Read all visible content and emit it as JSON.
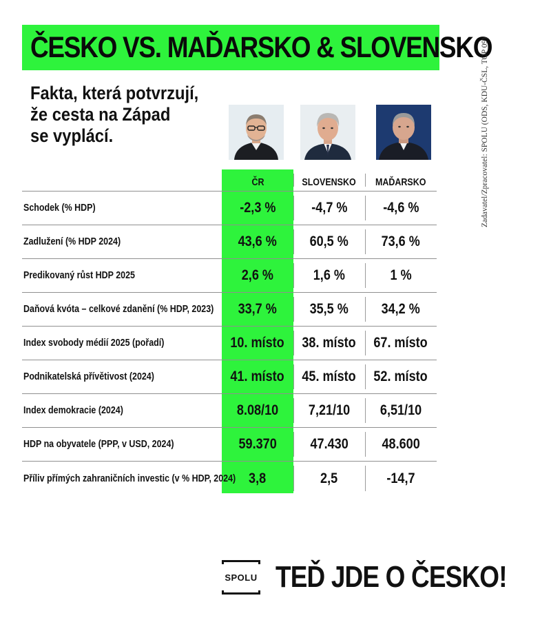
{
  "title": "ČESKO VS. MAĎARSKO & SLOVENSKO",
  "subtitle": [
    "Fakta, která potvrzují,",
    "že cesta na Západ",
    "se vyplácí."
  ],
  "side_credit": "Zadavatel/Zpracovatel: SPOLU (ODS, KDU-ČSL, TOP 09)",
  "avatars": [
    {
      "icon": "politician-portrait-cr-icon",
      "bg": "#e6edf1"
    },
    {
      "icon": "politician-portrait-slovensko-icon",
      "bg": "#e9eef1"
    },
    {
      "icon": "politician-portrait-madarsko-icon",
      "bg": "#1d3a70"
    }
  ],
  "table": {
    "columns": [
      "ČR",
      "SLOVENSKO",
      "MAĎARSKO"
    ],
    "rows": [
      {
        "label": "Schodek (% HDP)",
        "cr": "-2,3 %",
        "sk": "-4,7 %",
        "hu": "-4,6 %"
      },
      {
        "label": "Zadlužení (% HDP 2024)",
        "cr": "43,6 %",
        "sk": "60,5 %",
        "hu": "73,6 %"
      },
      {
        "label": "Predikovaný růst HDP 2025",
        "cr": "2,6 %",
        "sk": "1,6 %",
        "hu": "1 %"
      },
      {
        "label": "Daňová kvóta – celkové zdanění (% HDP, 2023)",
        "cr": "33,7 %",
        "sk": "35,5 %",
        "hu": "34,2 %"
      },
      {
        "label": "Index svobody médií 2025 (pořadí)",
        "cr": "10. místo",
        "sk": "38. místo",
        "hu": "67. místo"
      },
      {
        "label": "Podnikatelská přívětivost (2024)",
        "cr": "41. místo",
        "sk": "45. místo",
        "hu": "52. místo"
      },
      {
        "label": "Index demokracie (2024)",
        "cr": "8.08/10",
        "sk": "7,21/10",
        "hu": "6,51/10"
      },
      {
        "label": "HDP na obyvatele (PPP, v USD, 2024)",
        "cr": "59.370",
        "sk": "47.430",
        "hu": "48.600"
      },
      {
        "label": "Příliv přímých zahraničních investic (v % HDP, 2024)",
        "cr": "3,8",
        "sk": "2,5",
        "hu": "-14,7"
      }
    ]
  },
  "footer": {
    "logo_text": "SPOLU",
    "slogan": "TEĎ JDE O ČESKO!"
  },
  "colors": {
    "accent_green": "#2ef33c",
    "text": "#111111"
  }
}
